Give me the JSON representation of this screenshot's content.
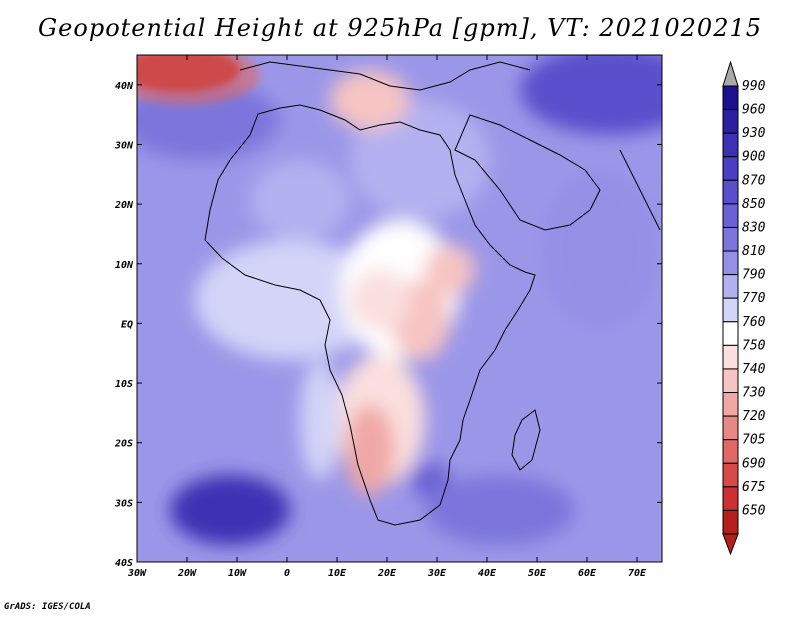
{
  "title": "Geopotential Height at 925hPa [gpm], VT: 2021020215",
  "credit": "GrADS: IGES/COLA",
  "map": {
    "lon_range": [
      -30,
      75
    ],
    "lat_range": [
      -40,
      45
    ],
    "lon_ticks": [
      {
        "value": -30,
        "label": "30W"
      },
      {
        "value": -20,
        "label": "20W"
      },
      {
        "value": -10,
        "label": "10W"
      },
      {
        "value": 0,
        "label": "0"
      },
      {
        "value": 10,
        "label": "10E"
      },
      {
        "value": 20,
        "label": "20E"
      },
      {
        "value": 30,
        "label": "30E"
      },
      {
        "value": 40,
        "label": "40E"
      },
      {
        "value": 50,
        "label": "50E"
      },
      {
        "value": 60,
        "label": "60E"
      },
      {
        "value": 70,
        "label": "70E"
      }
    ],
    "lat_ticks": [
      {
        "value": 40,
        "label": "40N"
      },
      {
        "value": 30,
        "label": "30N"
      },
      {
        "value": 20,
        "label": "20N"
      },
      {
        "value": 10,
        "label": "10N"
      },
      {
        "value": 0,
        "label": "EQ"
      },
      {
        "value": -10,
        "label": "10S"
      },
      {
        "value": -20,
        "label": "20S"
      },
      {
        "value": -30,
        "label": "30S"
      },
      {
        "value": -40,
        "label": "40S"
      }
    ]
  },
  "colorbar": {
    "top_arrow_color": "#a9a9a9",
    "bottom_arrow_color": "#b5201c",
    "levels": [
      {
        "label": "990",
        "color": "#1c108c"
      },
      {
        "label": "960",
        "color": "#2c20a0"
      },
      {
        "label": "930",
        "color": "#3c30b4"
      },
      {
        "label": "900",
        "color": "#4a3ec4"
      },
      {
        "label": "870",
        "color": "#5a50cc"
      },
      {
        "label": "850",
        "color": "#6a62d4"
      },
      {
        "label": "830",
        "color": "#7c76dc"
      },
      {
        "label": "810",
        "color": "#9590e6"
      },
      {
        "label": "790",
        "color": "#b3b1f0"
      },
      {
        "label": "770",
        "color": "#d3d4f8"
      },
      {
        "label": "760",
        "color": "#fefefe"
      },
      {
        "label": "750",
        "color": "#fbdfde"
      },
      {
        "label": "740",
        "color": "#f6c4c2"
      },
      {
        "label": "730",
        "color": "#f0a8a6"
      },
      {
        "label": "720",
        "color": "#e88886"
      },
      {
        "label": "705",
        "color": "#e06866"
      },
      {
        "label": "690",
        "color": "#d64a48"
      },
      {
        "label": "675",
        "color": "#cc3030"
      },
      {
        "label": "650",
        "color": "#b5201c"
      }
    ]
  }
}
